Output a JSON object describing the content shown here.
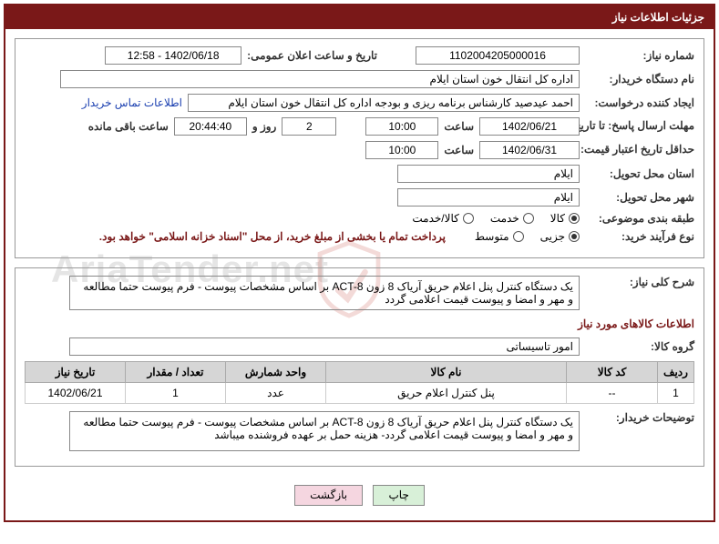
{
  "header_title": "جزئیات اطلاعات نیاز",
  "fields": {
    "need_number_label": "شماره نیاز:",
    "need_number": "1102004205000016",
    "announce_datetime_label": "تاریخ و ساعت اعلان عمومی:",
    "announce_datetime": "1402/06/18 - 12:58",
    "buyer_org_label": "نام دستگاه خریدار:",
    "buyer_org": "اداره کل انتقال خون استان ایلام",
    "requester_label": "ایجاد کننده درخواست:",
    "requester": "احمد عیدصید کارشناس برنامه ریزی و بودجه اداره کل انتقال خون استان ایلام",
    "buyer_contact_link": "اطلاعات تماس خریدار",
    "deadline_reply_label": "مهلت ارسال پاسخ: تا تاریخ:",
    "deadline_reply_date": "1402/06/21",
    "time_label": "ساعت",
    "deadline_reply_time": "10:00",
    "days_and": "روز و",
    "remaining_days": "2",
    "remaining_time": "20:44:40",
    "remaining_suffix": "ساعت باقی مانده",
    "min_validity_label": "حداقل تاریخ اعتبار قیمت: تا تاریخ:",
    "min_validity_date": "1402/06/31",
    "min_validity_time": "10:00",
    "delivery_province_label": "استان محل تحویل:",
    "delivery_province": "ایلام",
    "delivery_city_label": "شهر محل تحویل:",
    "delivery_city": "ایلام",
    "subject_class_label": "طبقه بندی موضوعی:",
    "purchase_process_label": "نوع فرآیند خرید:",
    "payment_note": "پرداخت تمام یا بخشی از مبلغ خرید، از محل \"اسناد خزانه اسلامی\" خواهد بود."
  },
  "subject_options": [
    {
      "label": "کالا",
      "checked": true
    },
    {
      "label": "خدمت",
      "checked": false
    },
    {
      "label": "کالا/خدمت",
      "checked": false
    }
  ],
  "process_options": [
    {
      "label": "جزیی",
      "checked": true
    },
    {
      "label": "متوسط",
      "checked": false
    }
  ],
  "summary": {
    "label": "شرح کلی نیاز:",
    "text": "یک دستگاه کنترل پنل اعلام حریق آریاک 8 زون ACT-8 بر اساس مشخصات پیوست - فرم پیوست حتما مطالعه و مهر و امضا و پیوست قیمت اعلامی گردد"
  },
  "goods_section_title": "اطلاعات کالاهای مورد نیاز",
  "goods_group_label": "گروه کالا:",
  "goods_group": "امور تاسیساتی",
  "table": {
    "headers": [
      "ردیف",
      "کد کالا",
      "نام کالا",
      "واحد شمارش",
      "تعداد / مقدار",
      "تاریخ نیاز"
    ],
    "rows": [
      [
        "1",
        "--",
        "پنل کنترل اعلام حریق",
        "عدد",
        "1",
        "1402/06/21"
      ]
    ]
  },
  "buyer_notes": {
    "label": "توضیحات خریدار:",
    "text": "یک دستگاه کنترل پنل اعلام حریق آریاک 8 زون ACT-8 بر اساس مشخصات پیوست - فرم پیوست حتما مطالعه و مهر و امضا و پیوست قیمت اعلامی گردد- هزینه حمل بر عهده فروشنده میباشد"
  },
  "buttons": {
    "print": "چاپ",
    "back": "بازگشت"
  },
  "colors": {
    "primary": "#7a1818",
    "border": "#999999",
    "field_border": "#888888",
    "th_bg": "#d6d6d6",
    "link": "#1a3fb0"
  }
}
